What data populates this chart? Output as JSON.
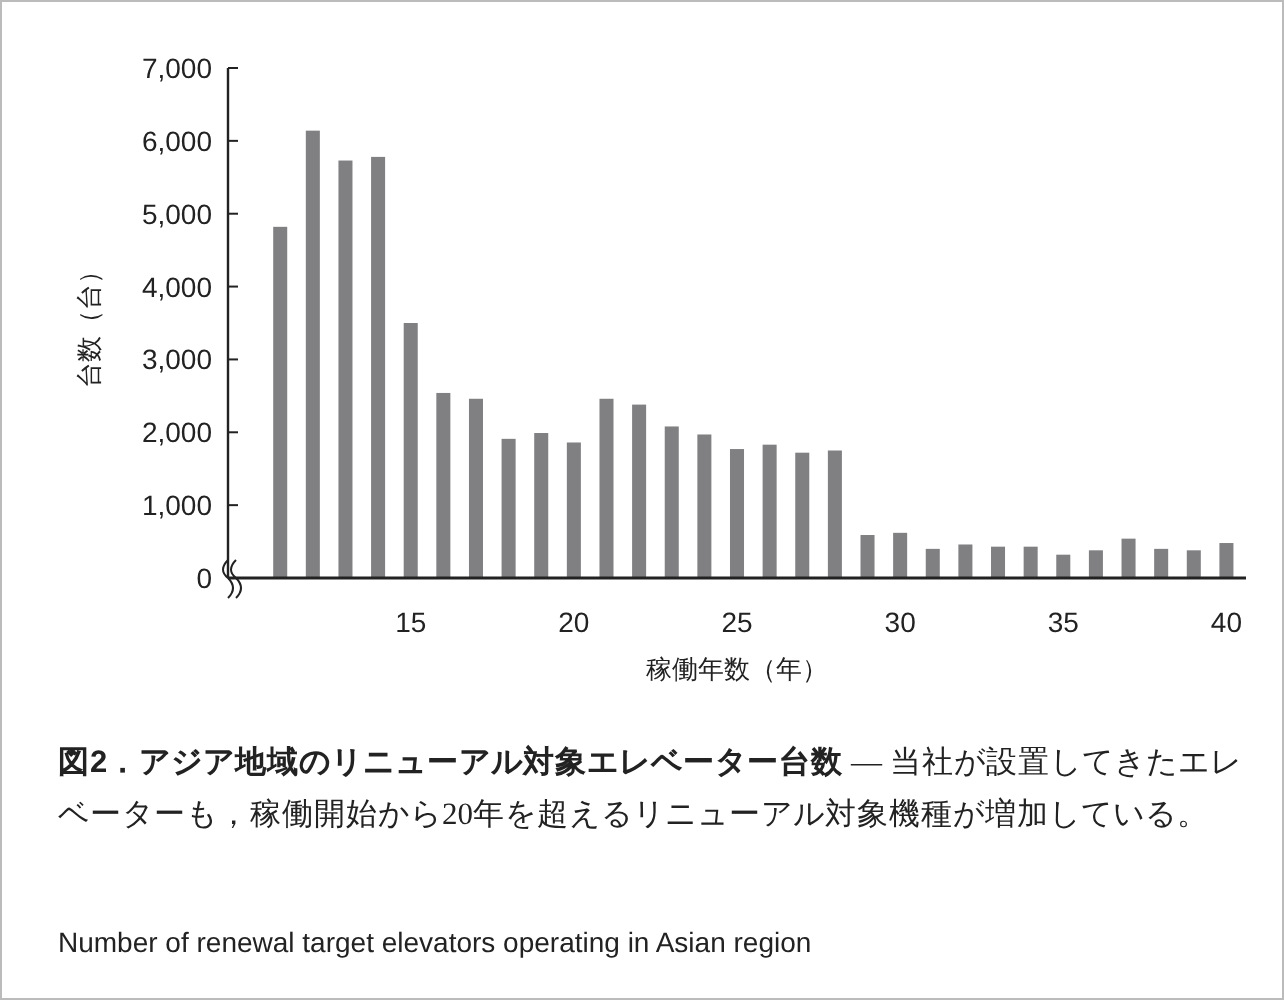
{
  "chart_data": {
    "type": "bar",
    "title": "図2．アジア地域のリニューアル対象エレベーター台数",
    "annotations": [
      "— 当社が設置してきたエレベーターも，稼働開始から20年を超えるリニューアル対象機種が増加している。",
      "Number of renewal target elevators operating in Asian region"
    ],
    "xlabel": "稼働年数（年）",
    "ylabel": "台数（台）",
    "x": [
      11,
      12,
      13,
      14,
      15,
      16,
      17,
      18,
      19,
      20,
      21,
      22,
      23,
      24,
      25,
      26,
      27,
      28,
      29,
      30,
      31,
      32,
      33,
      34,
      35,
      36,
      37,
      38,
      39,
      40
    ],
    "values": [
      4820,
      6140,
      5730,
      5780,
      3500,
      2540,
      2460,
      1910,
      1990,
      1860,
      2460,
      2380,
      2080,
      1970,
      1770,
      1830,
      1720,
      1750,
      590,
      620,
      400,
      460,
      430,
      430,
      320,
      380,
      540,
      400,
      380,
      480
    ],
    "color": "#808083",
    "xlim": [
      9.4,
      40.6
    ],
    "xticks": [
      15,
      20,
      25,
      30,
      35,
      40
    ],
    "ylim": [
      0,
      7000
    ],
    "yticks": [
      0,
      {
        "value": 1000,
        "label": "1,000"
      },
      {
        "value": 2000,
        "label": "2,000"
      },
      {
        "value": 3000,
        "label": "3,000"
      },
      {
        "value": 4000,
        "label": "4,000"
      },
      {
        "value": 5000,
        "label": "5,000"
      },
      {
        "value": 6000,
        "label": "6,000"
      },
      {
        "value": 7000,
        "label": "7,000"
      }
    ]
  }
}
